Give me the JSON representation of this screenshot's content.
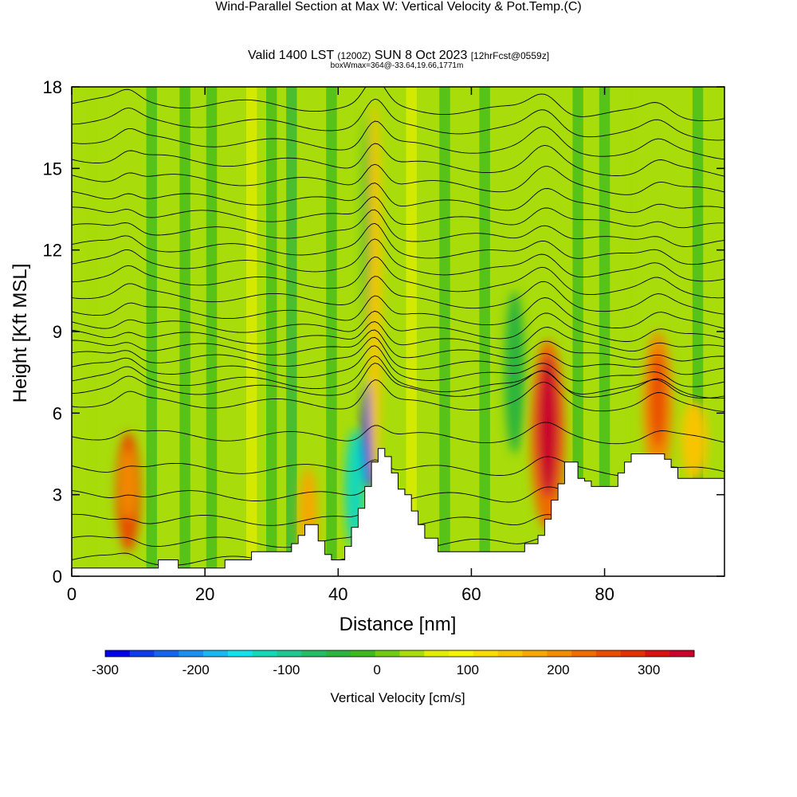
{
  "header": {
    "title": "Wind-Parallel Section at Max W: Vertical Velocity & Pot.Temp.",
    "copyright": "(C)",
    "valid_prefix": "Valid 1400 LST",
    "valid_utc": "(1200Z)",
    "valid_date": "SUN 8 Oct 2023",
    "forecast": "[12hrFcst@0559z]",
    "box_info": "boxWmax=364@-33.64,19.66,1771m"
  },
  "chart_data": {
    "type": "heatmap",
    "xlabel": "Distance [nm]",
    "ylabel": "Height [Kft MSL]",
    "xlim": [
      0,
      98
    ],
    "ylim": [
      0,
      18
    ],
    "x_ticks": [
      0,
      20,
      40,
      60,
      80
    ],
    "y_ticks": [
      0,
      3,
      6,
      9,
      12,
      15,
      18
    ],
    "colorbar": {
      "label": "Vertical Velocity [cm/s]",
      "min": -300,
      "max": 350,
      "step": 25,
      "tick_values": [
        -300,
        -200,
        -100,
        0,
        100,
        200,
        300
      ],
      "colors": [
        "#0000e6",
        "#0d3de8",
        "#1565ec",
        "#1a8ff0",
        "#19b9f0",
        "#10e2ec",
        "#12d8b8",
        "#1ec890",
        "#25bc66",
        "#2cb43c",
        "#3cba1e",
        "#70cc10",
        "#a8dc0a",
        "#e2ee00",
        "#f4f400",
        "#f8dc00",
        "#f8c400",
        "#f6a800",
        "#f28c00",
        "#ee6c00",
        "#e84e00",
        "#e23000",
        "#d81010",
        "#c8002a"
      ]
    },
    "terrain_profile": {
      "x": [
        0,
        2,
        5,
        8,
        10,
        12,
        13,
        15,
        16,
        18,
        20,
        22,
        23,
        25,
        27,
        29,
        31,
        32,
        33,
        34,
        35,
        36,
        37,
        38,
        39,
        40,
        41,
        42,
        43,
        44,
        45,
        46,
        47,
        48,
        49,
        50,
        51,
        52,
        53,
        55,
        57,
        60,
        63,
        66,
        68,
        70,
        71,
        72,
        73,
        74,
        75,
        76,
        77,
        78,
        79,
        80,
        81,
        82,
        83,
        84,
        85,
        86,
        87,
        88,
        89,
        90,
        91,
        92,
        93,
        95,
        98
      ],
      "y": [
        0.3,
        0.3,
        0.3,
        0.3,
        0.3,
        0.3,
        0.6,
        0.6,
        0.3,
        0.3,
        0.3,
        0.3,
        0.6,
        0.6,
        0.9,
        0.9,
        0.9,
        0.9,
        1.2,
        1.5,
        1.9,
        1.9,
        1.3,
        0.8,
        0.6,
        0.6,
        1.1,
        1.8,
        2.5,
        3.3,
        4.2,
        4.7,
        4.4,
        3.8,
        3.2,
        3.0,
        2.4,
        1.9,
        1.4,
        0.9,
        0.9,
        0.9,
        0.9,
        0.9,
        1.2,
        1.5,
        2.1,
        2.8,
        3.4,
        4.2,
        4.2,
        3.6,
        3.5,
        3.3,
        3.3,
        3.3,
        3.3,
        3.8,
        4.2,
        4.5,
        4.5,
        4.5,
        4.5,
        4.5,
        4.3,
        4.0,
        3.6,
        3.6,
        3.6,
        3.6,
        3.6
      ]
    },
    "vertical_velocity_cells": [
      {
        "x": 8.5,
        "y": 3.1,
        "rx": 1.8,
        "ry": 2.2,
        "w": 200
      },
      {
        "x": 8.5,
        "y": 3.4,
        "rx": 1.1,
        "ry": 1.3,
        "w": 150
      },
      {
        "x": 35.5,
        "y": 2.2,
        "rx": 1.4,
        "ry": 1.8,
        "w": 130
      },
      {
        "x": 44.8,
        "y": 5.2,
        "rx": 1.2,
        "ry": 2.0,
        "w": -300
      },
      {
        "x": 42.5,
        "y": 3.2,
        "rx": 1.5,
        "ry": 2.2,
        "w": -150
      },
      {
        "x": 45.5,
        "y": 10.5,
        "rx": 1.0,
        "ry": 7.0,
        "w": 100
      },
      {
        "x": 44.2,
        "y": 13.0,
        "rx": 0.5,
        "ry": 4.0,
        "w": -60
      },
      {
        "x": 71.5,
        "y": 5.2,
        "rx": 2.6,
        "ry": 3.5,
        "w": 175
      },
      {
        "x": 71.5,
        "y": 5.5,
        "rx": 1.6,
        "ry": 2.6,
        "w": 275
      },
      {
        "x": 71.2,
        "y": 6.0,
        "rx": 0.8,
        "ry": 1.6,
        "w": 325
      },
      {
        "x": 88,
        "y": 6.3,
        "rx": 2.2,
        "ry": 2.7,
        "w": 150
      },
      {
        "x": 88,
        "y": 6.5,
        "rx": 1.2,
        "ry": 1.8,
        "w": 200
      },
      {
        "x": 66.5,
        "y": 7.5,
        "rx": 1.5,
        "ry": 3.0,
        "w": -60
      },
      {
        "x": 93.5,
        "y": 5.0,
        "rx": 2.0,
        "ry": 1.5,
        "w": 100
      }
    ],
    "updraft_stripes": [
      {
        "x": 3,
        "w": 20
      },
      {
        "x": 12,
        "w": -40
      },
      {
        "x": 17,
        "w": -30
      },
      {
        "x": 21,
        "w": -50
      },
      {
        "x": 27,
        "w": 25
      },
      {
        "x": 30,
        "w": -40
      },
      {
        "x": 33,
        "w": -70
      },
      {
        "x": 39,
        "w": -40
      },
      {
        "x": 51,
        "w": 40
      },
      {
        "x": 56,
        "w": -30
      },
      {
        "x": 62,
        "w": -40
      },
      {
        "x": 76,
        "w": -45
      },
      {
        "x": 80,
        "w": -35
      },
      {
        "x": 84,
        "w": 20
      },
      {
        "x": 94,
        "w": -30
      }
    ],
    "isentrope_heights": [
      0.6,
      1.3,
      2.1,
      3.0,
      4.0,
      5.2,
      6.4,
      6.9,
      7.3,
      7.7,
      8.1,
      8.5,
      8.9,
      9.3,
      9.8,
      10.4,
      11.0,
      11.6,
      12.2,
      12.8,
      13.4,
      14.0,
      14.7,
      15.4,
      16.1,
      16.8,
      17.5
    ]
  }
}
